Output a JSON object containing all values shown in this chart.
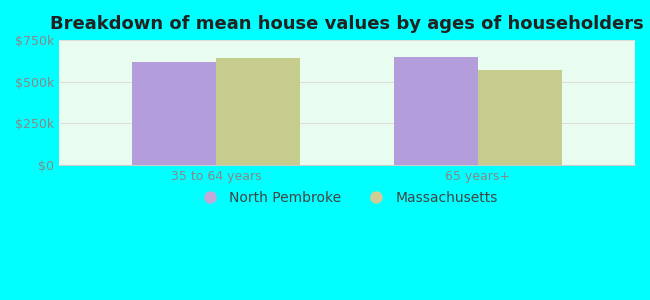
{
  "title": "Breakdown of mean house values by ages of householders",
  "categories": [
    "35 to 64 years",
    "65 years+"
  ],
  "series": {
    "North Pembroke": [
      620000,
      650000
    ],
    "Massachusetts": [
      642000,
      572000
    ]
  },
  "bar_colors": {
    "North Pembroke": "#b39ddb",
    "Massachusetts": "#c5cc8e"
  },
  "legend_marker_colors": {
    "North Pembroke": "#c4a8d8",
    "Massachusetts": "#d0cc96"
  },
  "ylim": [
    0,
    750000
  ],
  "yticks": [
    0,
    250000,
    500000,
    750000
  ],
  "ytick_labels": [
    "$0",
    "$250k",
    "$500k",
    "$750k"
  ],
  "background_color": "#00ffff",
  "plot_bg_top": "#e8fdf0",
  "plot_bg_bottom": "#ffffff",
  "bar_width": 0.32,
  "title_fontsize": 13,
  "tick_fontsize": 9,
  "legend_fontsize": 10
}
